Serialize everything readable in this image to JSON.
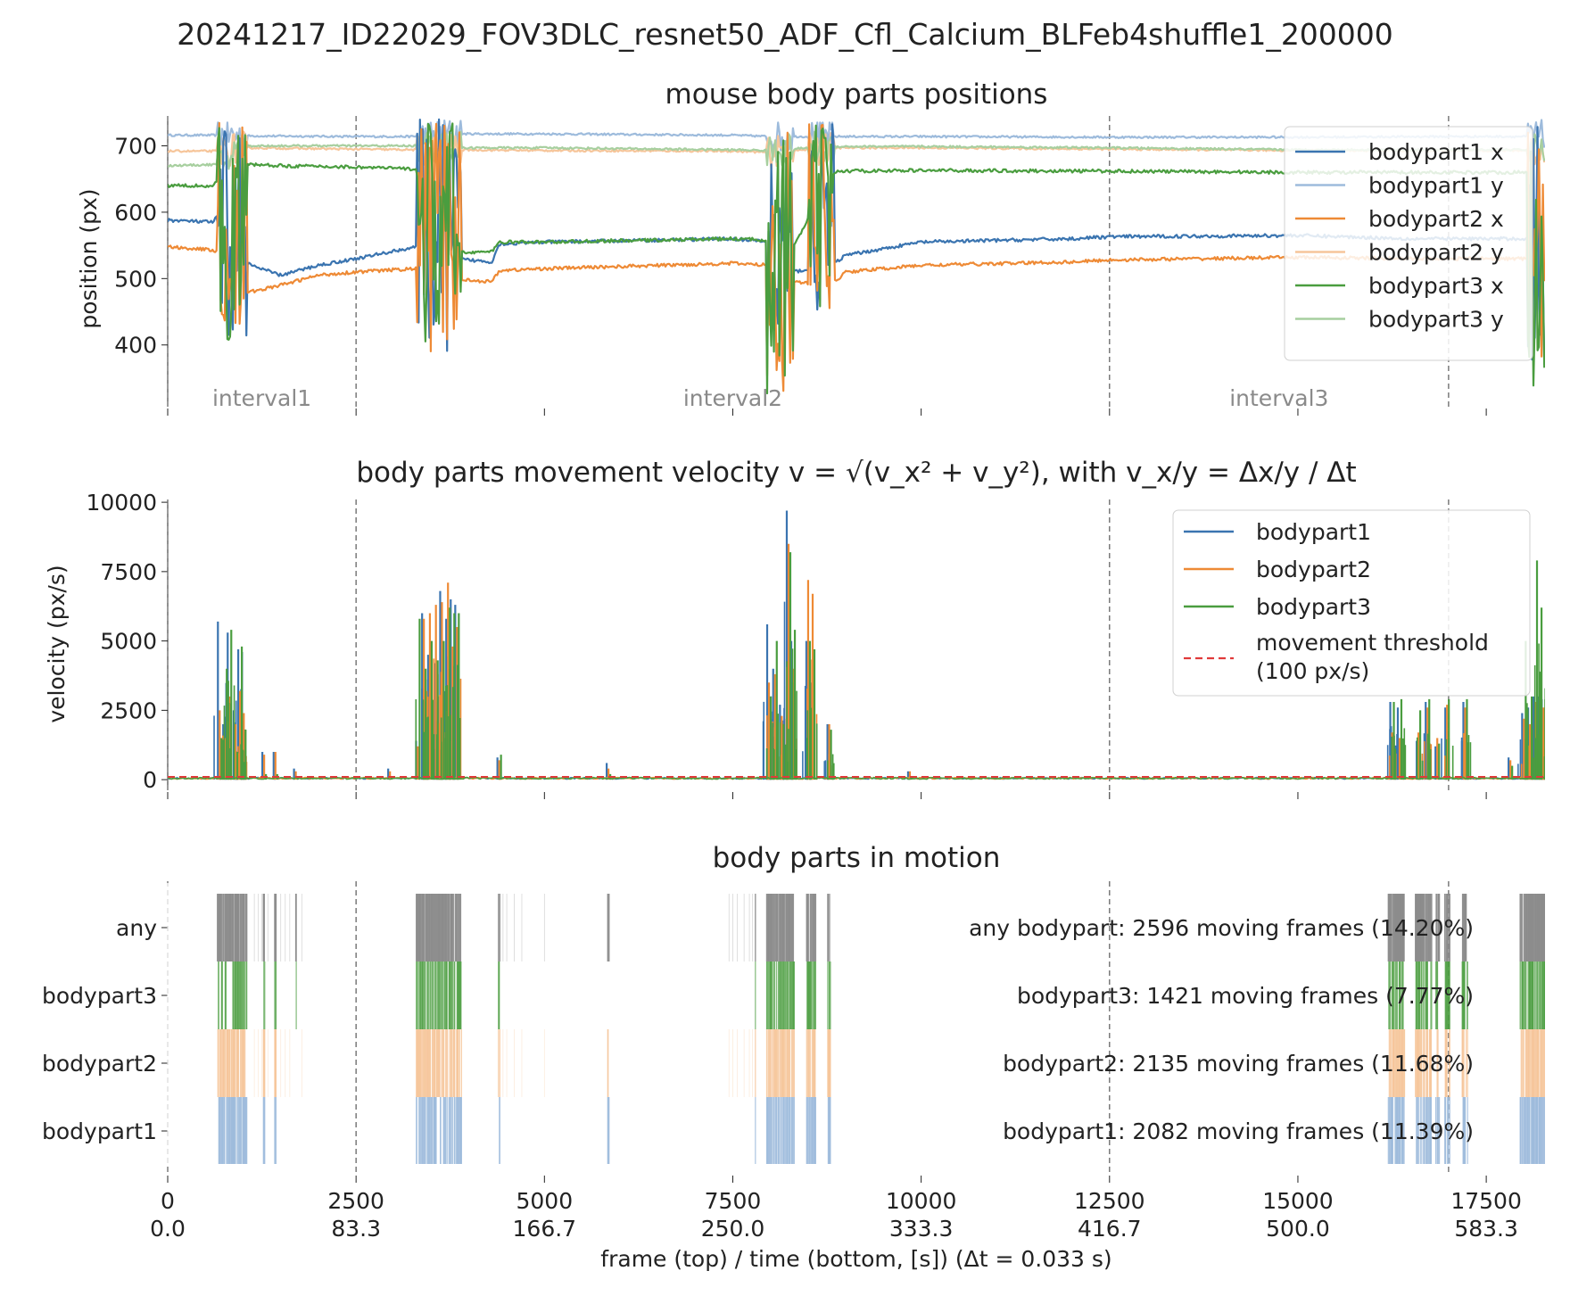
{
  "figure": {
    "suptitle": "20241217_ID22029_FOV3DLC_resnet50_ADF_Cfl_Calcium_BLFeb4shuffle1_200000",
    "xlabel": "frame (top) / time (bottom, [s]) (Δt = 0.033 s)",
    "frame_ticks": [
      "0",
      "2500",
      "5000",
      "7500",
      "10000",
      "12500",
      "15000",
      "17500"
    ],
    "time_ticks": [
      "0.0",
      "83.3",
      "166.7",
      "250.0",
      "333.3",
      "416.7",
      "500.0",
      "583.3"
    ]
  },
  "colors": {
    "bodypart1": "#3a74b0",
    "bodypart1_light": "#9dbbdc",
    "bodypart2": "#ee8a35",
    "bodypart2_light": "#f6c59a",
    "bodypart3": "#4a9d3f",
    "bodypart3_light": "#a7cf9f",
    "any": "#8c8c8c",
    "threshold": "#e03a3a",
    "boundary": "#666666"
  },
  "chart_data": [
    {
      "type": "line",
      "title": "mouse body parts positions",
      "ylabel": "position (px)",
      "xlim": [
        0,
        18280
      ],
      "ylim": [
        315,
        745
      ],
      "yticks": [
        "400",
        "500",
        "600",
        "700"
      ],
      "interval_boundaries": [
        0,
        2500,
        12500,
        17000
      ],
      "interval_labels": [
        "interval1",
        "interval2",
        "interval3"
      ],
      "legend": [
        "bodypart1 x",
        "bodypart1 y",
        "bodypart2 x",
        "bodypart2 y",
        "bodypart3 x",
        "bodypart3 y"
      ],
      "legend_position": "top-right",
      "series": [
        {
          "name": "bodypart1 y",
          "x": [
            0,
            700,
            1000,
            2500,
            3300,
            3800,
            5000,
            7500,
            8000,
            8800,
            10000,
            12500,
            15000,
            17000,
            18280
          ],
          "values": [
            716,
            716,
            715,
            714,
            714,
            718,
            718,
            716,
            714,
            714,
            714,
            713,
            713,
            714,
            714
          ]
        },
        {
          "name": "bodypart2 y",
          "x": [
            0,
            700,
            1000,
            2500,
            3300,
            3800,
            5000,
            7500,
            8000,
            8800,
            10000,
            12500,
            15000,
            17000,
            18280
          ],
          "values": [
            692,
            692,
            697,
            695,
            694,
            694,
            693,
            692,
            690,
            697,
            697,
            695,
            693,
            693,
            693
          ]
        },
        {
          "name": "bodypart3 y",
          "x": [
            0,
            700,
            1000,
            2500,
            3300,
            3800,
            5000,
            7500,
            8000,
            8800,
            10000,
            12500,
            15000,
            17000,
            18280
          ],
          "values": [
            670,
            672,
            700,
            700,
            700,
            697,
            697,
            694,
            693,
            699,
            699,
            697,
            694,
            694,
            694
          ]
        },
        {
          "name": "bodypart1 x",
          "x": [
            0,
            600,
            700,
            1000,
            1100,
            1500,
            2000,
            2500,
            3300,
            3800,
            4300,
            4400,
            5000,
            7500,
            8000,
            8300,
            8800,
            9000,
            10000,
            12000,
            12500,
            15000,
            16500,
            17000,
            18280
          ],
          "values": [
            588,
            585,
            600,
            530,
            520,
            505,
            520,
            530,
            548,
            530,
            525,
            552,
            555,
            560,
            555,
            510,
            520,
            535,
            555,
            560,
            563,
            565,
            560,
            560,
            560
          ]
        },
        {
          "name": "bodypart2 x",
          "x": [
            0,
            600,
            700,
            1000,
            1100,
            1500,
            2000,
            2500,
            3300,
            3800,
            4300,
            4400,
            5000,
            7500,
            8000,
            8300,
            8800,
            9000,
            10000,
            12000,
            12500,
            15000,
            16500,
            17000,
            18280
          ],
          "values": [
            548,
            543,
            540,
            480,
            480,
            490,
            505,
            510,
            515,
            500,
            495,
            512,
            515,
            523,
            520,
            495,
            490,
            510,
            520,
            525,
            528,
            532,
            530,
            530,
            530
          ]
        },
        {
          "name": "bodypart3 x",
          "x": [
            0,
            600,
            700,
            1000,
            1100,
            1500,
            2000,
            2500,
            3300,
            3800,
            4300,
            4400,
            5000,
            7500,
            8000,
            8300,
            8800,
            9000,
            10000,
            12000,
            12500,
            15000,
            16500,
            17000,
            18280
          ],
          "values": [
            640,
            640,
            650,
            670,
            672,
            670,
            669,
            668,
            665,
            540,
            540,
            555,
            555,
            560,
            558,
            545,
            660,
            662,
            663,
            662,
            662,
            660,
            660,
            660,
            660
          ]
        }
      ],
      "bursts": [
        {
          "x0": 650,
          "x1": 1050,
          "low": 400,
          "high": 735
        },
        {
          "x0": 3300,
          "x1": 3900,
          "low": 390,
          "high": 740
        },
        {
          "x0": 7950,
          "x1": 8300,
          "low": 325,
          "high": 735
        },
        {
          "x0": 8500,
          "x1": 8850,
          "low": 435,
          "high": 735
        },
        {
          "x0": 18050,
          "x1": 18280,
          "low": 325,
          "high": 740
        }
      ]
    },
    {
      "type": "line",
      "title": "body parts movement velocity v = √(v_x² + v_y²), with v_x/y = Δx/y / Δt",
      "ylabel": "velocity (px/s)",
      "xlim": [
        0,
        18280
      ],
      "ylim": [
        -350,
        10100
      ],
      "yticks": [
        "0",
        "2500",
        "5000",
        "7500",
        "10000"
      ],
      "interval_boundaries": [
        0,
        2500,
        12500,
        17000
      ],
      "legend": [
        "bodypart1",
        "bodypart2",
        "bodypart3",
        "movement threshold",
        "(100 px/s)"
      ],
      "legend_position": "top-right",
      "threshold": 100,
      "spikes": [
        {
          "x": 690,
          "bodypart1": 5700,
          "bodypart2": 2500,
          "bodypart3": 1500
        },
        {
          "x": 760,
          "bodypart1": 2000,
          "bodypart2": 1500,
          "bodypart3": 4000
        },
        {
          "x": 820,
          "bodypart1": 5300,
          "bodypart2": 3000,
          "bodypart3": 5400
        },
        {
          "x": 900,
          "bodypart1": 2500,
          "bodypart2": 2000,
          "bodypart3": 1000
        },
        {
          "x": 960,
          "bodypart1": 4700,
          "bodypart2": 3200,
          "bodypart3": 4800
        },
        {
          "x": 1010,
          "bodypart1": 4600,
          "bodypart2": 2400,
          "bodypart3": 1800
        },
        {
          "x": 1280,
          "bodypart1": 1000,
          "bodypart2": 900,
          "bodypart3": 200
        },
        {
          "x": 1430,
          "bodypart1": 1000,
          "bodypart2": 1000,
          "bodypart3": 200
        },
        {
          "x": 1700,
          "bodypart1": 400,
          "bodypart2": 300,
          "bodypart3": 100
        },
        {
          "x": 2950,
          "bodypart1": 400,
          "bodypart2": 300,
          "bodypart3": 100
        },
        {
          "x": 3320,
          "bodypart1": 1400,
          "bodypart2": 1200,
          "bodypart3": 5800
        },
        {
          "x": 3400,
          "bodypart1": 6000,
          "bodypart2": 5800,
          "bodypart3": 4000
        },
        {
          "x": 3480,
          "bodypart1": 4500,
          "bodypart2": 6000,
          "bodypart3": 5000
        },
        {
          "x": 3560,
          "bodypart1": 4200,
          "bodypart2": 6300,
          "bodypart3": 4300
        },
        {
          "x": 3640,
          "bodypart1": 6800,
          "bodypart2": 6400,
          "bodypart3": 5000
        },
        {
          "x": 3720,
          "bodypart1": 5800,
          "bodypart2": 7100,
          "bodypart3": 6200
        },
        {
          "x": 3780,
          "bodypart1": 6500,
          "bodypart2": 4800,
          "bodypart3": 6000
        },
        {
          "x": 3840,
          "bodypart1": 6300,
          "bodypart2": 5500,
          "bodypart3": 6000
        },
        {
          "x": 4400,
          "bodypart1": 800,
          "bodypart2": 700,
          "bodypart3": 900
        },
        {
          "x": 5850,
          "bodypart1": 600,
          "bodypart2": 400,
          "bodypart3": 200
        },
        {
          "x": 7980,
          "bodypart1": 5600,
          "bodypart2": 3500,
          "bodypart3": 3000
        },
        {
          "x": 8060,
          "bodypart1": 4000,
          "bodypart2": 3800,
          "bodypart3": 5000
        },
        {
          "x": 8150,
          "bodypart1": 2700,
          "bodypart2": 2300,
          "bodypart3": 2000
        },
        {
          "x": 8240,
          "bodypart1": 9700,
          "bodypart2": 8500,
          "bodypart3": 8200
        },
        {
          "x": 8300,
          "bodypart1": 5000,
          "bodypart2": 4000,
          "bodypart3": 5400
        },
        {
          "x": 8500,
          "bodypart1": 5000,
          "bodypart2": 7200,
          "bodypart3": 5000
        },
        {
          "x": 8560,
          "bodypart1": 3500,
          "bodypart2": 6700,
          "bodypart3": 4700
        },
        {
          "x": 8780,
          "bodypart1": 2000,
          "bodypart2": 2000,
          "bodypart3": 1800
        },
        {
          "x": 9850,
          "bodypart1": 300,
          "bodypart2": 300,
          "bodypart3": 100
        },
        {
          "x": 16250,
          "bodypart1": 2800,
          "bodypart2": 1700,
          "bodypart3": 2800
        },
        {
          "x": 16350,
          "bodypart1": 2600,
          "bodypart2": 1500,
          "bodypart3": 2900
        },
        {
          "x": 16600,
          "bodypart1": 1400,
          "bodypart2": 1700,
          "bodypart3": 2500
        },
        {
          "x": 16720,
          "bodypart1": 2800,
          "bodypart2": 2600,
          "bodypart3": 2900
        },
        {
          "x": 16850,
          "bodypart1": 1200,
          "bodypart2": 1500,
          "bodypart3": 1300
        },
        {
          "x": 16980,
          "bodypart1": 2600,
          "bodypart2": 2700,
          "bodypart3": 2900
        },
        {
          "x": 17220,
          "bodypart1": 2800,
          "bodypart2": 2600,
          "bodypart3": 2900
        },
        {
          "x": 17820,
          "bodypart1": 800,
          "bodypart2": 700,
          "bodypart3": 500
        },
        {
          "x": 18000,
          "bodypart1": 2400,
          "bodypart2": 2200,
          "bodypart3": 5000
        },
        {
          "x": 18080,
          "bodypart1": 2600,
          "bodypart2": 2000,
          "bodypart3": 3000
        },
        {
          "x": 18150,
          "bodypart1": 3000,
          "bodypart2": 2800,
          "bodypart3": 7900
        },
        {
          "x": 18210,
          "bodypart1": 3000,
          "bodypart2": 2600,
          "bodypart3": 6200
        },
        {
          "x": 18260,
          "bodypart1": 2900,
          "bodypart2": 2600,
          "bodypart3": 2900
        }
      ]
    },
    {
      "type": "bar",
      "title": "body parts in motion",
      "categories": [
        "any",
        "bodypart3",
        "bodypart2",
        "bodypart1"
      ],
      "xlim": [
        0,
        18280
      ],
      "interval_boundaries": [
        0,
        2500,
        12500,
        17000
      ],
      "annotations": [
        "any bodypart: 2596 moving frames (14.20%)",
        "bodypart3: 1421 moving frames (7.77%)",
        "bodypart2: 2135 moving frames (11.68%)",
        "bodypart1: 2082 moving frames (11.39%)"
      ],
      "moving_segments": [
        [
          660,
          1050
        ],
        [
          1270,
          1290
        ],
        [
          1420,
          1440
        ],
        [
          1700,
          1710
        ],
        [
          3300,
          3900
        ],
        [
          4390,
          4410
        ],
        [
          5840,
          5860
        ],
        [
          7800,
          7805
        ],
        [
          7950,
          8320
        ],
        [
          8480,
          8600
        ],
        [
          8760,
          8800
        ],
        [
          16200,
          16420
        ],
        [
          16560,
          16780
        ],
        [
          16830,
          16880
        ],
        [
          16950,
          17020
        ],
        [
          17180,
          17260
        ],
        [
          17950,
          18280
        ]
      ],
      "sparse_any": [
        1150,
        1200,
        1250,
        1330,
        1500,
        1560,
        1620,
        1780,
        4450,
        4500,
        4600,
        4700,
        5000,
        7450,
        7500,
        7560,
        7650,
        7720,
        7760
      ]
    }
  ]
}
